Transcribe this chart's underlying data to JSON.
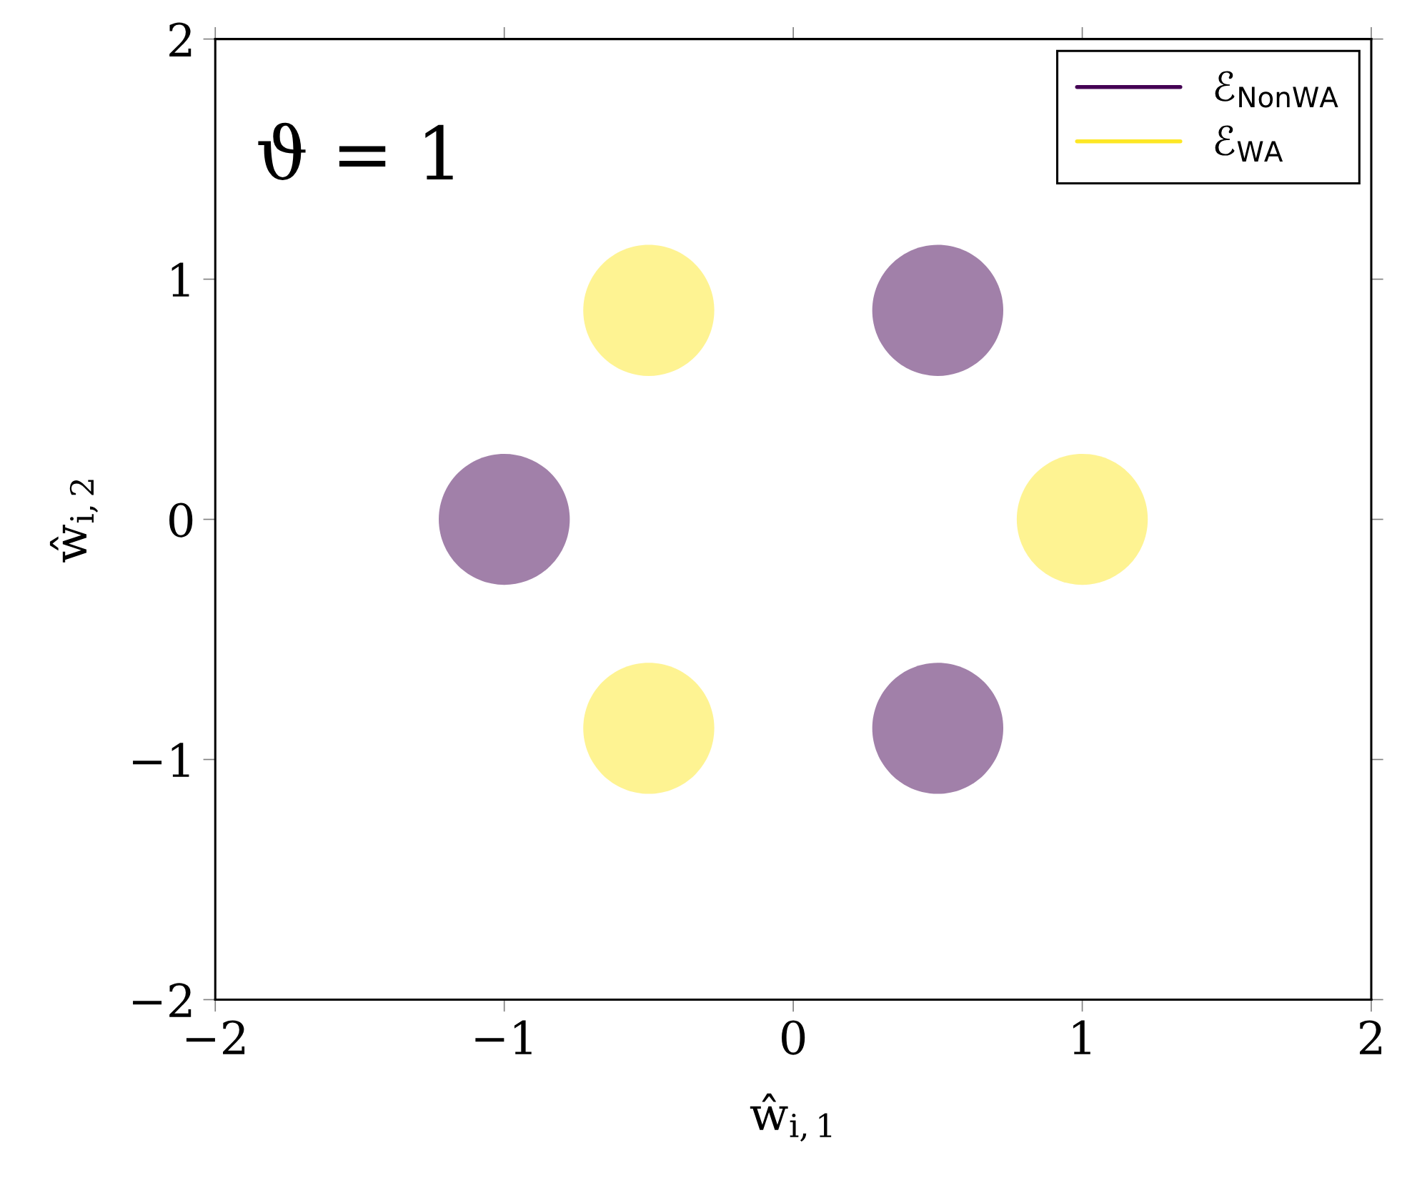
{
  "chart_data": {
    "type": "scatter",
    "xlabel": "ŵ$_{i,1}$",
    "ylabel": "ŵ$_{i,2}$",
    "annotations": [
      "ϑ = 1"
    ],
    "series": [
      {
        "name": "ℰ$_{NonWA}$",
        "color": "#440154",
        "x": [
          0.5,
          -1,
          0.5
        ],
        "values": [
          0.87,
          0,
          -0.87
        ]
      },
      {
        "name": "ℰ$_{WA}$",
        "color": "#fde725",
        "x": [
          -0.5,
          1,
          -0.5
        ],
        "values": [
          0.87,
          0,
          -0.87
        ]
      }
    ],
    "xlim": [
      -2,
      2
    ],
    "ylim": [
      -2,
      2
    ],
    "xticks": [
      {
        "value": -2,
        "label": "−2"
      },
      {
        "value": -1,
        "label": "−1"
      },
      0,
      1,
      2
    ],
    "yticks": [
      {
        "value": -2,
        "label": "−2"
      },
      {
        "value": -1,
        "label": "−1"
      },
      0,
      1,
      2
    ],
    "marker": "circle",
    "grid": false,
    "legend": "top right"
  }
}
